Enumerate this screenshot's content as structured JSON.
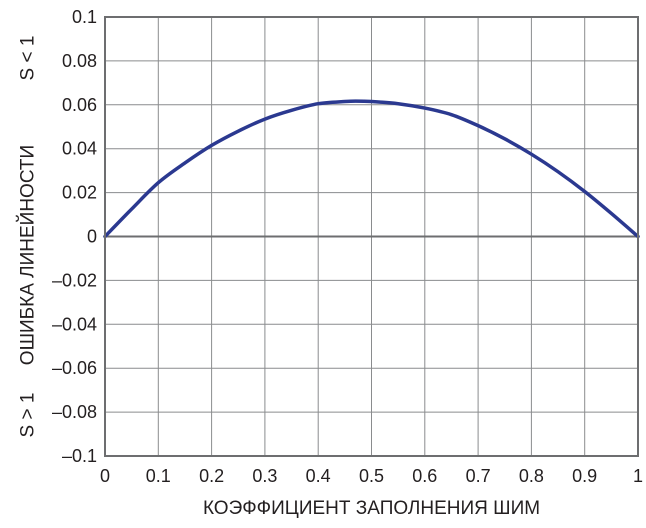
{
  "chart_data": {
    "type": "line",
    "title": "",
    "xlabel": "КОЭФФИЦИЕНТ ЗАПОЛНЕНИЯ ШИМ",
    "ylabel": "ОШИБКА ЛИНЕЙНОСТИ",
    "ylabel_top_note": "S < 1",
    "ylabel_bottom_note": "S > 1",
    "xlim": [
      0,
      1
    ],
    "ylim": [
      -0.1,
      0.1
    ],
    "x_ticks": [
      "0",
      "0.1",
      "0.2",
      "0.3",
      "0.4",
      "0.5",
      "0.6",
      "0.7",
      "0.8",
      "0.9",
      "1"
    ],
    "y_ticks": [
      "0.1",
      "0.08",
      "0.06",
      "0.04",
      "0.02",
      "0",
      "–0.02",
      "–0.04",
      "–0.06",
      "–0.08",
      "–0.1"
    ],
    "grid": true,
    "series": [
      {
        "color": "#2b3990",
        "x": [
          0,
          0.05,
          0.1,
          0.15,
          0.2,
          0.25,
          0.3,
          0.35,
          0.4,
          0.45,
          0.47,
          0.5,
          0.55,
          0.6,
          0.65,
          0.7,
          0.75,
          0.8,
          0.85,
          0.9,
          0.95,
          1
        ],
        "y": [
          0,
          0.0125,
          0.0245,
          0.0335,
          0.0415,
          0.048,
          0.0535,
          0.0575,
          0.0605,
          0.0615,
          0.0617,
          0.0615,
          0.0605,
          0.0585,
          0.0555,
          0.0505,
          0.0445,
          0.0375,
          0.0295,
          0.0205,
          0.0105,
          0
        ]
      }
    ]
  }
}
